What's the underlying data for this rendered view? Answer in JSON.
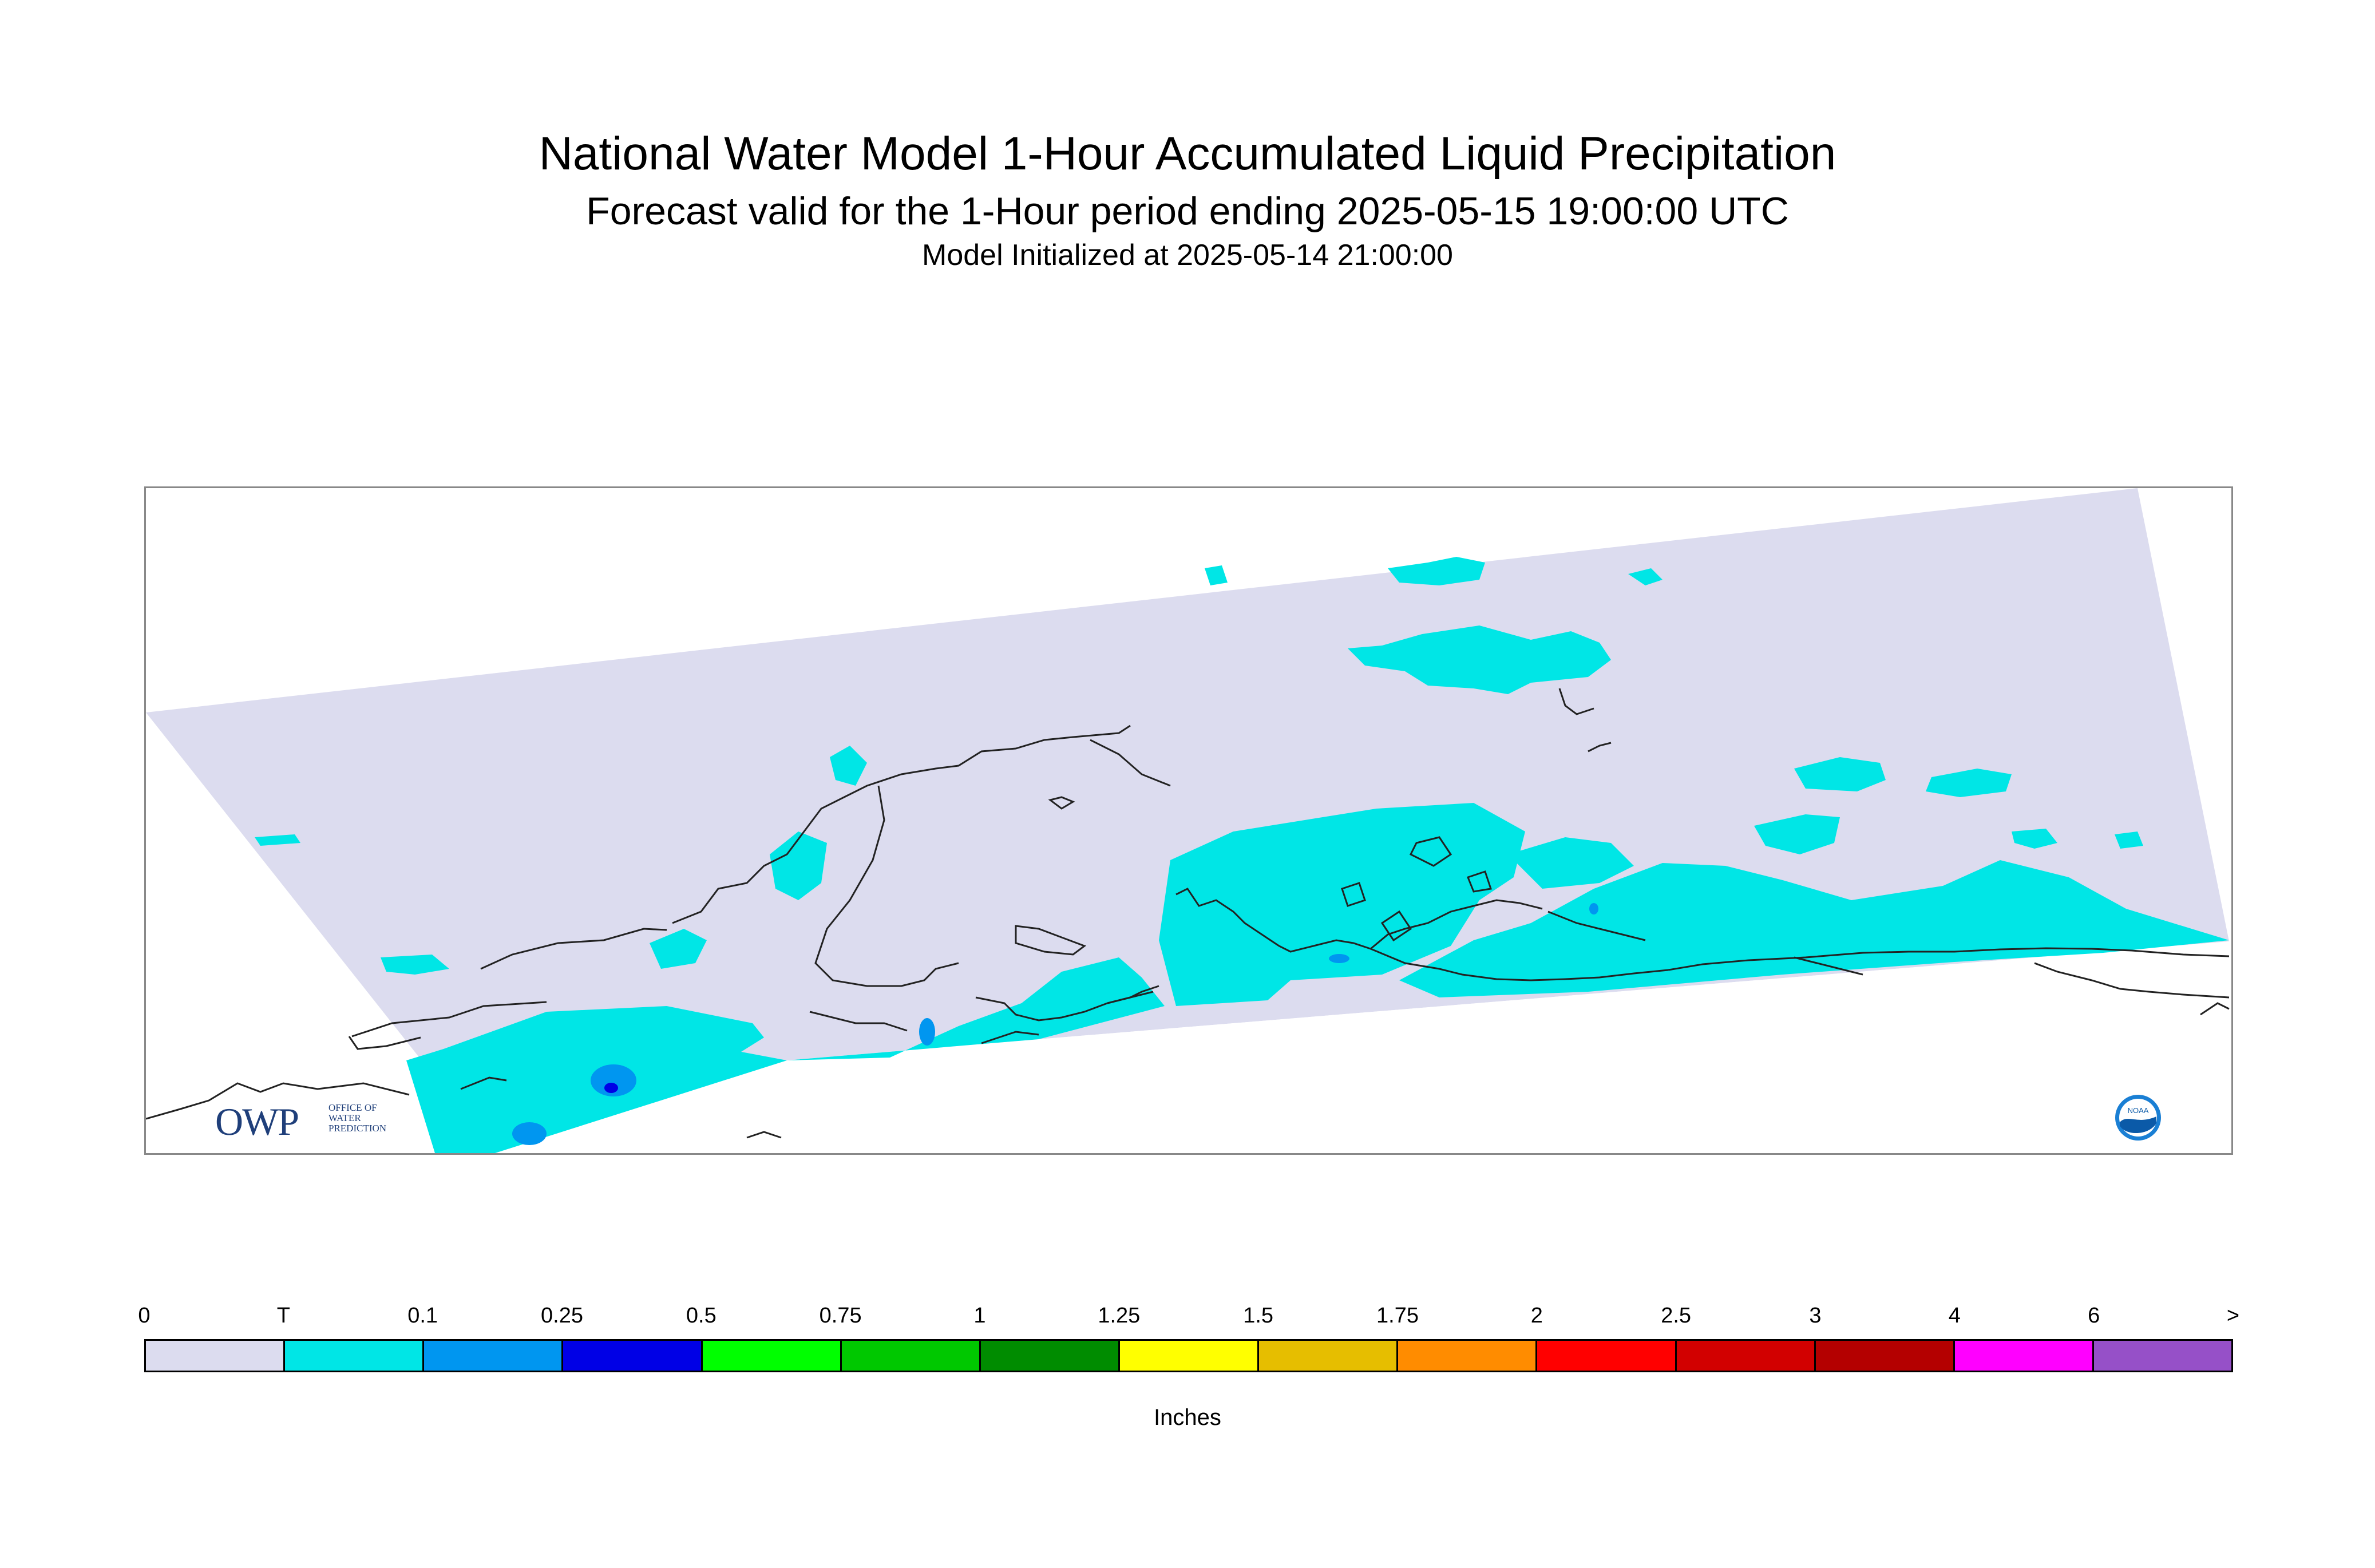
{
  "title": "National Water Model 1-Hour Accumulated Liquid Precipitation",
  "subtitle": "Forecast valid for the 1-Hour period ending 2025-05-15 19:00:00 UTC",
  "init_line": "Model Initialized at 2025-05-14 21:00:00",
  "logos": {
    "owp_letters": "OWP",
    "owp_text": "OFFICE OF WATER PREDICTION",
    "noaa_text": "NOAA"
  },
  "map": {
    "domain_color": "#dcdcef",
    "background_color": "#ffffff",
    "coastline_color": "#222222"
  },
  "legend": {
    "tick_labels": [
      "0",
      "T",
      "0.1",
      "0.25",
      "0.5",
      "0.75",
      "1",
      "1.25",
      "1.5",
      "1.75",
      "2",
      "2.5",
      "3",
      "4",
      "6",
      ">"
    ],
    "colors": [
      "#dcdcef",
      "#00e6e6",
      "#0096f0",
      "#0000e6",
      "#00ff00",
      "#00c800",
      "#008c00",
      "#ffff00",
      "#e6be00",
      "#ff8c00",
      "#ff0000",
      "#d20000",
      "#b40000",
      "#ff00ff",
      "#9650c8"
    ],
    "units": "Inches"
  }
}
